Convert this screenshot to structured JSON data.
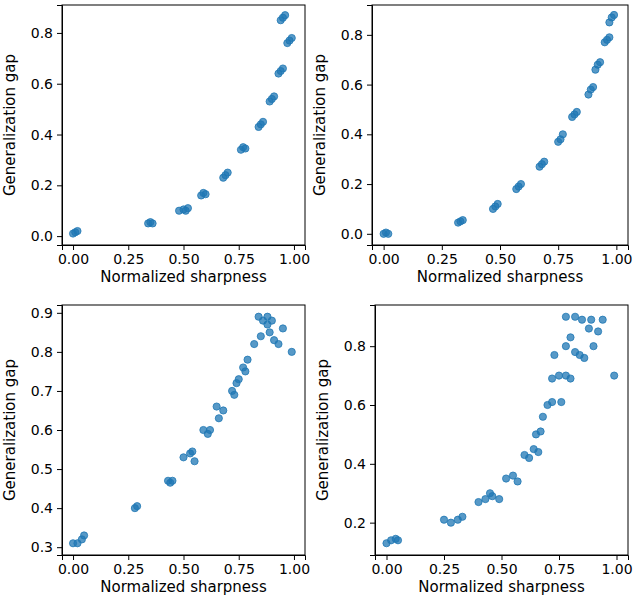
{
  "chart_data": [
    {
      "type": "scatter",
      "xlabel": "Normalized sharpness",
      "ylabel": "Generalization gap",
      "color": "#1f77b4",
      "marker": "circle",
      "x": [
        0.0,
        0.01,
        0.02,
        0.34,
        0.35,
        0.36,
        0.48,
        0.5,
        0.52,
        0.51,
        0.58,
        0.59,
        0.6,
        0.68,
        0.69,
        0.7,
        0.76,
        0.77,
        0.78,
        0.84,
        0.85,
        0.86,
        0.89,
        0.9,
        0.91,
        0.93,
        0.94,
        0.95,
        0.97,
        0.98,
        0.99,
        0.94,
        0.95,
        0.96
      ],
      "values": [
        0.01,
        0.015,
        0.02,
        0.05,
        0.055,
        0.05,
        0.1,
        0.105,
        0.11,
        0.1,
        0.16,
        0.17,
        0.165,
        0.23,
        0.24,
        0.25,
        0.34,
        0.35,
        0.345,
        0.43,
        0.44,
        0.45,
        0.53,
        0.54,
        0.55,
        0.64,
        0.65,
        0.66,
        0.76,
        0.77,
        0.78,
        0.85,
        0.86,
        0.87
      ],
      "xlim": [
        -0.05,
        1.05
      ],
      "ylim": [
        -0.035,
        0.91
      ],
      "xticks": [
        {
          "value": 0,
          "label": "0.00"
        },
        0.25,
        {
          "value": 0.5,
          "label": "0.50"
        },
        0.75,
        {
          "value": 1,
          "label": "1.00"
        }
      ],
      "yticks": [
        {
          "value": 0,
          "label": "0.0"
        },
        0.2,
        0.4,
        0.6,
        0.8
      ]
    },
    {
      "type": "scatter",
      "xlabel": "Normalized sharpness",
      "ylabel": "Generalization gap",
      "color": "#1f77b4",
      "marker": "circle",
      "x": [
        0.0,
        0.01,
        0.02,
        0.32,
        0.33,
        0.34,
        0.47,
        0.48,
        0.49,
        0.57,
        0.58,
        0.59,
        0.67,
        0.68,
        0.69,
        0.75,
        0.76,
        0.77,
        0.81,
        0.82,
        0.83,
        0.88,
        0.89,
        0.9,
        0.91,
        0.92,
        0.93,
        0.95,
        0.96,
        0.97,
        0.97,
        0.98,
        0.99
      ],
      "values": [
        0.0,
        0.005,
        0.0,
        0.045,
        0.05,
        0.055,
        0.1,
        0.11,
        0.12,
        0.18,
        0.19,
        0.2,
        0.27,
        0.28,
        0.29,
        0.37,
        0.38,
        0.4,
        0.47,
        0.48,
        0.49,
        0.56,
        0.58,
        0.59,
        0.66,
        0.68,
        0.69,
        0.77,
        0.78,
        0.79,
        0.85,
        0.87,
        0.88
      ],
      "xlim": [
        -0.05,
        1.05
      ],
      "ylim": [
        -0.045,
        0.92
      ],
      "xticks": [
        {
          "value": 0,
          "label": "0.00"
        },
        0.25,
        {
          "value": 0.5,
          "label": "0.50"
        },
        0.75,
        {
          "value": 1,
          "label": "1.00"
        }
      ],
      "yticks": [
        {
          "value": 0,
          "label": "0.0"
        },
        0.2,
        0.4,
        0.6,
        0.8
      ]
    },
    {
      "type": "scatter",
      "xlabel": "Normalized sharpness",
      "ylabel": "Generalization gap",
      "color": "#1f77b4",
      "marker": "circle",
      "x": [
        0.0,
        0.02,
        0.04,
        0.05,
        0.28,
        0.29,
        0.43,
        0.44,
        0.45,
        0.5,
        0.53,
        0.55,
        0.54,
        0.59,
        0.62,
        0.61,
        0.65,
        0.68,
        0.66,
        0.72,
        0.74,
        0.75,
        0.73,
        0.77,
        0.79,
        0.78,
        0.82,
        0.84,
        0.86,
        0.88,
        0.85,
        0.89,
        0.91,
        0.95,
        0.93,
        0.99,
        0.88,
        0.9
      ],
      "values": [
        0.31,
        0.31,
        0.32,
        0.33,
        0.4,
        0.405,
        0.47,
        0.465,
        0.47,
        0.53,
        0.54,
        0.52,
        0.545,
        0.6,
        0.6,
        0.59,
        0.66,
        0.65,
        0.63,
        0.7,
        0.72,
        0.73,
        0.69,
        0.76,
        0.78,
        0.75,
        0.82,
        0.89,
        0.88,
        0.87,
        0.84,
        0.85,
        0.83,
        0.86,
        0.82,
        0.8,
        0.89,
        0.88
      ],
      "xlim": [
        -0.05,
        1.05
      ],
      "ylim": [
        0.28,
        0.92
      ],
      "xticks": [
        {
          "value": 0,
          "label": "0.00"
        },
        0.25,
        {
          "value": 0.5,
          "label": "0.50"
        },
        0.75,
        {
          "value": 1,
          "label": "1.00"
        }
      ],
      "yticks": [
        0.3,
        0.4,
        0.5,
        0.6,
        0.7,
        0.8,
        0.9
      ]
    },
    {
      "type": "scatter",
      "xlabel": "Normalized sharpness",
      "ylabel": "Generalization gap",
      "color": "#1f77b4",
      "marker": "circle",
      "x": [
        0.0,
        0.02,
        0.04,
        0.05,
        0.25,
        0.28,
        0.31,
        0.33,
        0.4,
        0.43,
        0.46,
        0.49,
        0.45,
        0.52,
        0.55,
        0.57,
        0.6,
        0.62,
        0.64,
        0.66,
        0.65,
        0.67,
        0.68,
        0.7,
        0.72,
        0.75,
        0.78,
        0.8,
        0.72,
        0.76,
        0.73,
        0.78,
        0.8,
        0.82,
        0.84,
        0.86,
        0.78,
        0.82,
        0.85,
        0.89,
        0.94,
        0.88,
        0.92,
        0.9,
        0.99
      ],
      "values": [
        0.13,
        0.14,
        0.145,
        0.14,
        0.21,
        0.2,
        0.21,
        0.22,
        0.27,
        0.28,
        0.29,
        0.28,
        0.3,
        0.35,
        0.36,
        0.34,
        0.43,
        0.42,
        0.45,
        0.44,
        0.5,
        0.51,
        0.56,
        0.6,
        0.69,
        0.7,
        0.7,
        0.69,
        0.61,
        0.61,
        0.77,
        0.8,
        0.83,
        0.78,
        0.77,
        0.76,
        0.9,
        0.9,
        0.89,
        0.89,
        0.89,
        0.86,
        0.85,
        0.8,
        0.7
      ],
      "xlim": [
        -0.05,
        1.05
      ],
      "ylim": [
        0.09,
        0.94
      ],
      "xticks": [
        {
          "value": 0,
          "label": "0.00"
        },
        0.25,
        {
          "value": 0.5,
          "label": "0.50"
        },
        0.75,
        {
          "value": 1,
          "label": "1.00"
        }
      ],
      "yticks": [
        0.2,
        0.4,
        0.6,
        0.8
      ]
    }
  ]
}
